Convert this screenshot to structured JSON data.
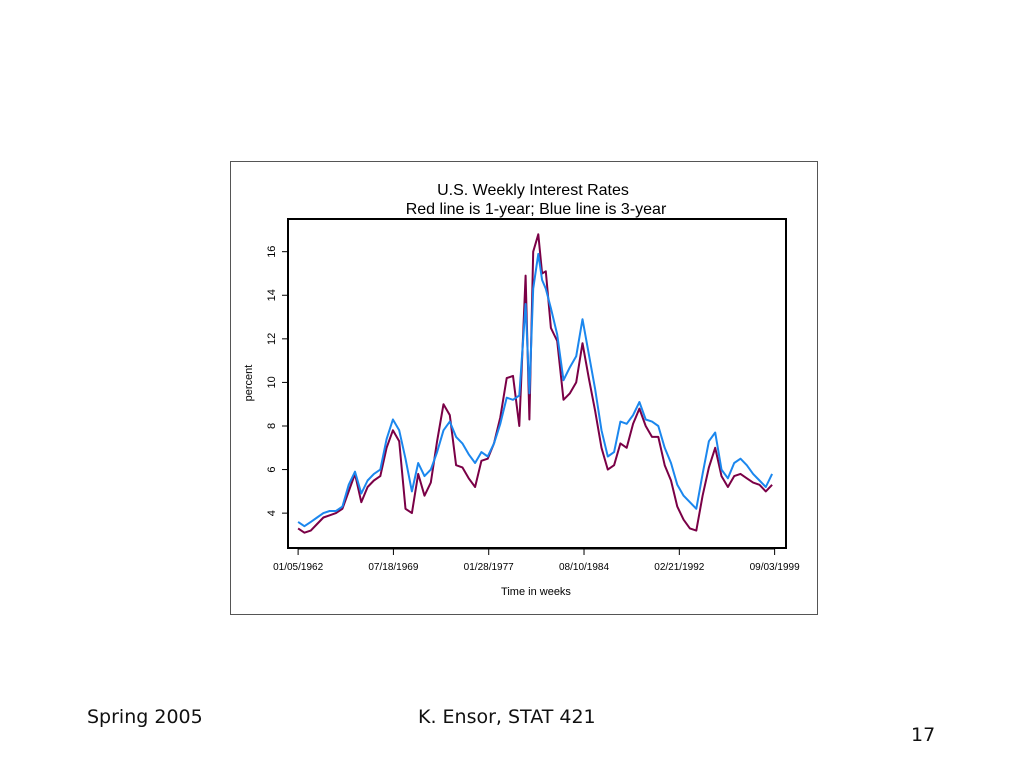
{
  "footer": {
    "left": "Spring 2005",
    "center": "K. Ensor, STAT 421",
    "page": "17"
  },
  "chart_data": {
    "type": "line",
    "title": "U.S. Weekly Interest Rates",
    "subtitle": "Red line is 1-year; Blue line is 3-year",
    "xlabel": "Time in weeks",
    "ylabel": "percent",
    "x_tick_labels": [
      "01/05/1962",
      "07/18/1969",
      "01/28/1977",
      "08/10/1984",
      "02/21/1992",
      "09/03/1999"
    ],
    "y_ticks": [
      4,
      6,
      8,
      10,
      12,
      14,
      16
    ],
    "xlim": [
      1961.2,
      2000.6
    ],
    "ylim": [
      2.4,
      17.5
    ],
    "grid": false,
    "legend": "none",
    "x": [
      1962.0,
      1962.5,
      1963.0,
      1963.5,
      1964.0,
      1964.5,
      1965.0,
      1965.5,
      1966.0,
      1966.5,
      1967.0,
      1967.5,
      1968.0,
      1968.5,
      1969.0,
      1969.5,
      1970.0,
      1970.5,
      1971.0,
      1971.5,
      1972.0,
      1972.5,
      1973.0,
      1973.5,
      1974.0,
      1974.5,
      1975.0,
      1975.5,
      1976.0,
      1976.5,
      1977.0,
      1977.5,
      1978.0,
      1978.5,
      1979.0,
      1979.5,
      1980.0,
      1980.3,
      1980.6,
      1981.0,
      1981.3,
      1981.6,
      1982.0,
      1982.5,
      1983.0,
      1983.5,
      1984.0,
      1984.5,
      1985.0,
      1985.5,
      1986.0,
      1986.5,
      1987.0,
      1987.5,
      1988.0,
      1988.5,
      1989.0,
      1989.5,
      1990.0,
      1990.5,
      1991.0,
      1991.5,
      1992.0,
      1992.5,
      1993.0,
      1993.5,
      1994.0,
      1994.5,
      1995.0,
      1995.5,
      1996.0,
      1996.5,
      1997.0,
      1997.5,
      1998.0,
      1998.5,
      1999.0,
      1999.5
    ],
    "series": [
      {
        "color": "#7a0046",
        "values": [
          3.3,
          3.1,
          3.2,
          3.5,
          3.8,
          3.9,
          4.0,
          4.2,
          5.0,
          5.8,
          4.5,
          5.2,
          5.5,
          5.7,
          7.0,
          7.8,
          7.3,
          4.2,
          4.0,
          5.8,
          4.8,
          5.4,
          7.3,
          9.0,
          8.5,
          6.2,
          6.1,
          5.6,
          5.2,
          6.4,
          6.5,
          7.2,
          8.4,
          10.2,
          10.3,
          8.0,
          14.9,
          8.3,
          16.0,
          16.8,
          15.0,
          15.1,
          12.5,
          11.9,
          9.2,
          9.5,
          10.0,
          11.8,
          10.2,
          8.7,
          7.0,
          6.0,
          6.2,
          7.2,
          7.0,
          8.1,
          8.8,
          8.0,
          7.5,
          7.5,
          6.2,
          5.5,
          4.3,
          3.7,
          3.3,
          3.2,
          4.8,
          6.1,
          7.0,
          5.7,
          5.2,
          5.7,
          5.8,
          5.6,
          5.4,
          5.3,
          5.0,
          5.3
        ]
      },
      {
        "color": "#1b87ee",
        "values": [
          3.6,
          3.4,
          3.6,
          3.8,
          4.0,
          4.1,
          4.1,
          4.3,
          5.3,
          5.9,
          4.9,
          5.5,
          5.8,
          6.0,
          7.4,
          8.3,
          7.8,
          6.5,
          5.0,
          6.3,
          5.7,
          6.0,
          6.8,
          7.8,
          8.2,
          7.5,
          7.2,
          6.7,
          6.3,
          6.8,
          6.6,
          7.2,
          8.1,
          9.3,
          9.2,
          9.4,
          13.6,
          9.5,
          14.3,
          15.9,
          14.7,
          14.3,
          13.4,
          12.2,
          10.1,
          10.7,
          11.2,
          12.9,
          11.3,
          9.7,
          7.8,
          6.6,
          6.8,
          8.2,
          8.1,
          8.5,
          9.1,
          8.3,
          8.2,
          8.0,
          7.0,
          6.3,
          5.3,
          4.8,
          4.5,
          4.2,
          5.8,
          7.3,
          7.7,
          6.0,
          5.6,
          6.3,
          6.5,
          6.2,
          5.8,
          5.5,
          5.2,
          5.8
        ]
      }
    ]
  }
}
